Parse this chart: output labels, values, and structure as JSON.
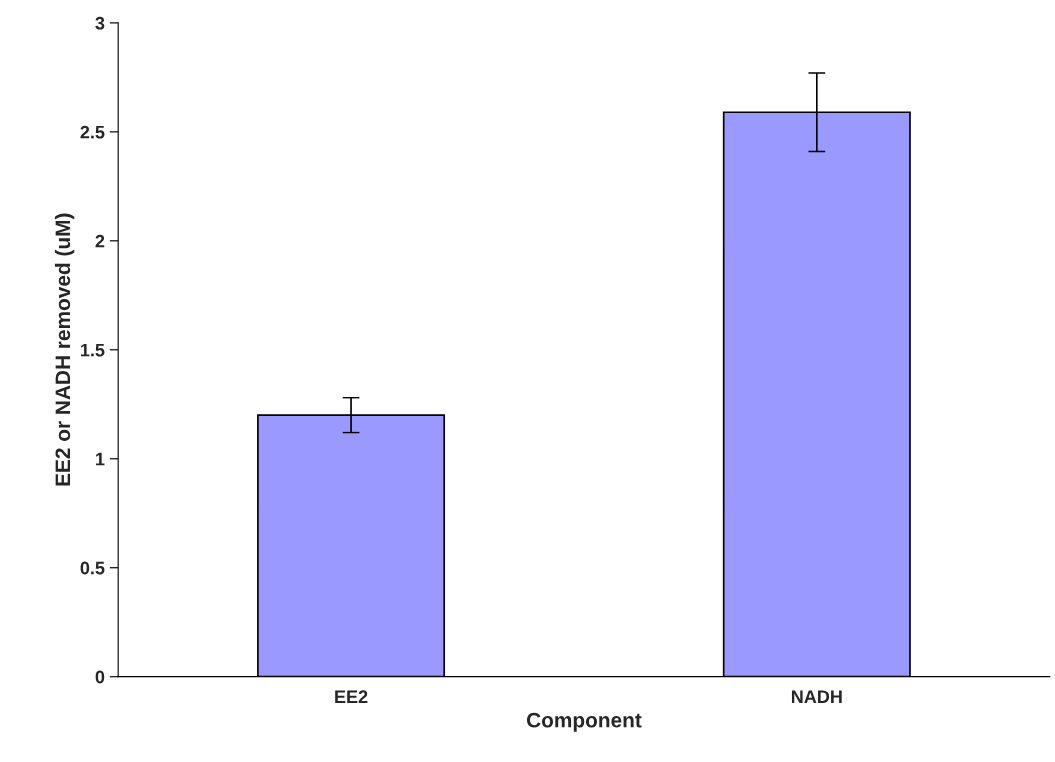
{
  "chart_data": {
    "type": "bar",
    "xlabel": "Component",
    "ylabel": "EE2 or NADH removed (uM)",
    "categories": [
      "EE2",
      "NADH"
    ],
    "values": [
      1.2,
      2.59
    ],
    "errors": [
      0.08,
      0.18
    ],
    "color": "#9999ff",
    "ylim": [
      0,
      3
    ],
    "yticks": [
      0,
      0.5,
      1,
      1.5,
      2,
      2.5,
      3
    ],
    "grid": false,
    "legend": false
  }
}
